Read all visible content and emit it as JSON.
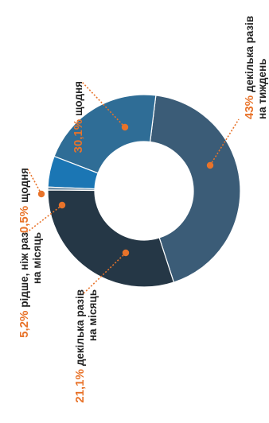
{
  "chart_data": {
    "type": "pie",
    "variant": "donut",
    "orientation": "rotated-90-ccw",
    "title": "",
    "slices": [
      {
        "value": 43,
        "label": "43%",
        "text_lines": [
          "декілька разів",
          "на тиждень"
        ],
        "color": "#3b5c77"
      },
      {
        "value": 21.1,
        "label": "21,1%",
        "text_lines": [
          "декілька разів",
          "на місяць"
        ],
        "color": "#2f6d96"
      },
      {
        "value": 5.2,
        "label": "5,2%",
        "text_lines": [
          "рідше, ніж раз",
          "на місяць"
        ],
        "color": "#1b76b4"
      },
      {
        "value": 0.5,
        "label": "0,5%",
        "text_lines": [
          "щодня"
        ],
        "color": "#6e8ca3"
      },
      {
        "value": 30.1,
        "label": "30,1%",
        "text_lines": [
          "щодня"
        ],
        "color": "#253746"
      }
    ]
  },
  "colors": {
    "accent": "#e8732a",
    "text": "#222222",
    "divider": "#ffffff"
  }
}
